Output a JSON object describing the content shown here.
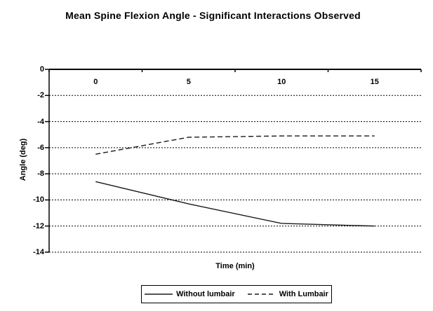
{
  "title": "Mean Spine Flexion Angle - Significant Interactions Observed",
  "chart_data": {
    "type": "line",
    "title": "Mean Spine Flexion Angle - Significant Interactions Observed",
    "categories": [
      "0",
      "5",
      "10",
      "15"
    ],
    "series": [
      {
        "name": "Without lumbair",
        "line_style": "solid",
        "color": "#1a1a1a",
        "values": [
          -8.6,
          -10.3,
          -11.8,
          -12.0
        ]
      },
      {
        "name": "With Lumbair",
        "line_style": "dashed",
        "color": "#1a1a1a",
        "values": [
          -6.5,
          -5.2,
          -5.1,
          -5.1
        ]
      }
    ],
    "xlabel": "Time (min)",
    "ylabel": "Angle (deg)",
    "ylim": [
      -14,
      0
    ],
    "yticks": [
      0,
      -2,
      -4,
      -6,
      -8,
      -10,
      -12,
      -14
    ],
    "grid": "horizontal dashed",
    "legend_position": "bottom",
    "background": "#ffffff",
    "axis_color": "#000000"
  }
}
